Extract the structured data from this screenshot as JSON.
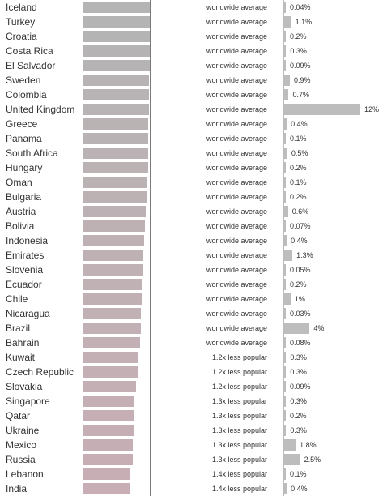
{
  "chart_data": {
    "type": "bar",
    "columns": [
      "",
      "",
      ""
    ],
    "ref_value": 1.0,
    "categories": [
      "Iceland",
      "Turkey",
      "Croatia",
      "Costa Rica",
      "El Salvador",
      "Sweden",
      "Colombia",
      "United Kingdom",
      "Greece",
      "Panama",
      "South Africa",
      "Hungary",
      "Oman",
      "Bulgaria",
      "Austria",
      "Bolivia",
      "Indonesia",
      "Emirates",
      "Slovenia",
      "Ecuador",
      "Chile",
      "Nicaragua",
      "Brazil",
      "Bahrain",
      "Kuwait",
      "Czech Republic",
      "Slovakia",
      "Singapore",
      "Qatar",
      "Ukraine",
      "Mexico",
      "Russia",
      "Lebanon",
      "India"
    ],
    "relative_popularity": [
      1.0,
      1.0,
      1.0,
      1.0,
      1.0,
      0.99,
      0.99,
      0.99,
      0.98,
      0.98,
      0.98,
      0.98,
      0.96,
      0.95,
      0.94,
      0.93,
      0.91,
      0.9,
      0.9,
      0.89,
      0.88,
      0.87,
      0.87,
      0.85,
      0.83,
      0.82,
      0.79,
      0.77,
      0.76,
      0.76,
      0.74,
      0.74,
      0.71,
      0.69
    ],
    "popularity_labels": [
      "worldwide average",
      "worldwide average",
      "worldwide average",
      "worldwide average",
      "worldwide average",
      "worldwide average",
      "worldwide average",
      "worldwide average",
      "worldwide average",
      "worldwide average",
      "worldwide average",
      "worldwide average",
      "worldwide average",
      "worldwide average",
      "worldwide average",
      "worldwide average",
      "worldwide average",
      "worldwide average",
      "worldwide average",
      "worldwide average",
      "worldwide average",
      "worldwide average",
      "worldwide average",
      "worldwide average",
      "1.2x less popular",
      "1.2x less popular",
      "1.2x less popular",
      "1.3x less popular",
      "1.3x less popular",
      "1.3x less popular",
      "1.3x less popular",
      "1.3x less popular",
      "1.4x less popular",
      "1.4x less popular"
    ],
    "share_values": [
      0.04,
      1.1,
      0.2,
      0.3,
      0.09,
      0.9,
      0.7,
      12,
      0.4,
      0.1,
      0.5,
      0.2,
      0.1,
      0.2,
      0.6,
      0.07,
      0.4,
      1.3,
      0.05,
      0.2,
      1,
      0.03,
      4,
      0.08,
      0.3,
      0.3,
      0.09,
      0.3,
      0.2,
      0.3,
      1.8,
      2.5,
      0.1,
      0.4
    ],
    "share_labels": [
      "0.04%",
      "1.1%",
      "0.2%",
      "0.3%",
      "0.09%",
      "0.9%",
      "0.7%",
      "12%",
      "0.4%",
      "0.1%",
      "0.5%",
      "0.2%",
      "0.1%",
      "0.2%",
      "0.6%",
      "0.07%",
      "0.4%",
      "1.3%",
      "0.05%",
      "0.2%",
      "1%",
      "0.03%",
      "4%",
      "0.08%",
      "0.3%",
      "0.3%",
      "0.09%",
      "0.3%",
      "0.2%",
      "0.3%",
      "1.8%",
      "2.5%",
      "0.1%",
      "0.4%"
    ],
    "share_max": 12,
    "colors": {
      "bar_gray": "#b4b4b4",
      "bar_pink": "#c8aeb4",
      "share_bar": "#bdbdbd",
      "ref_line": "#7a7a7a"
    }
  }
}
